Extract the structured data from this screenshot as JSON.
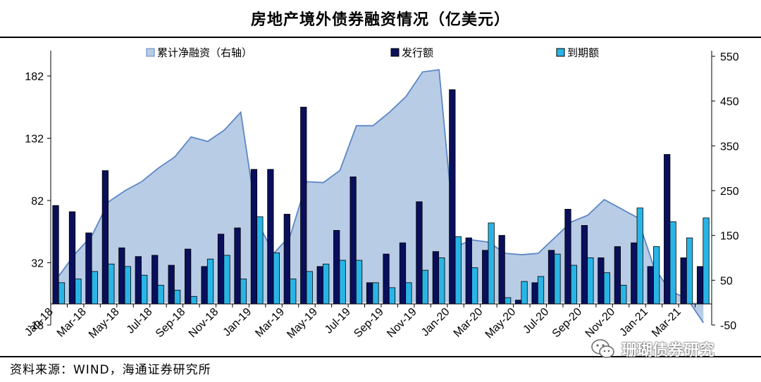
{
  "title": "房地产境外债券融资情况（亿美元）",
  "source": "资料来源：WIND，海通证券研究所",
  "watermark": "珊瑚债券研究",
  "colors": {
    "area_fill": "#b9cce6",
    "area_line": "#5b87c4",
    "issuance": "#0a0f5c",
    "maturity": "#29b4e6",
    "bar_stroke": "#000000"
  },
  "chart_data": {
    "type": "bar",
    "title": "房地产境外债券融资情况（亿美元）",
    "categories": [
      "Jan-18",
      "Feb-18",
      "Mar-18",
      "Apr-18",
      "May-18",
      "Jun-18",
      "Jul-18",
      "Aug-18",
      "Sep-18",
      "Oct-18",
      "Nov-18",
      "Dec-18",
      "Jan-19",
      "Feb-19",
      "Mar-19",
      "Apr-19",
      "May-19",
      "Jun-19",
      "Jul-19",
      "Aug-19",
      "Sep-19",
      "Oct-19",
      "Nov-19",
      "Dec-19",
      "Jan-20",
      "Feb-20",
      "Mar-20",
      "Apr-20",
      "May-20",
      "Jun-20",
      "Jul-20",
      "Aug-20",
      "Sep-20",
      "Oct-20",
      "Nov-20",
      "Dec-20",
      "Jan-21",
      "Feb-21",
      "Mar-21",
      "Apr-21"
    ],
    "x_tick_labels": [
      "Jan-18",
      "Mar-18",
      "May-18",
      "Jul-18",
      "Sep-18",
      "Nov-18",
      "Jan-19",
      "Mar-19",
      "May-19",
      "Jul-19",
      "Sep-19",
      "Nov-19",
      "Jan-20",
      "Mar-20",
      "May-20",
      "Jul-20",
      "Sep-20",
      "Nov-20",
      "Jan-21",
      "Mar-21"
    ],
    "series": [
      {
        "name": "累计净融资（右轴）",
        "type": "area",
        "axis": "right",
        "values": [
          60,
          110,
          150,
          225,
          250,
          270,
          300,
          325,
          370,
          360,
          385,
          425,
          180,
          110,
          150,
          270,
          268,
          295,
          395,
          395,
          425,
          460,
          515,
          520,
          125,
          140,
          135,
          110,
          107,
          110,
          145,
          180,
          195,
          230,
          210,
          190,
          80,
          25,
          10,
          -45
        ]
      },
      {
        "name": "发行额",
        "type": "bar",
        "axis": "left",
        "values": [
          78,
          73,
          56,
          106,
          44,
          37,
          38,
          30,
          43,
          29,
          55,
          60,
          107,
          107,
          71,
          157,
          29,
          58,
          101,
          16,
          39,
          48,
          81,
          41,
          171,
          52,
          42,
          54,
          2,
          16,
          42,
          75,
          62,
          36,
          45,
          48,
          29,
          119,
          36,
          29
        ]
      },
      {
        "name": "到期额",
        "type": "bar",
        "axis": "left",
        "values": [
          16,
          19,
          25,
          31,
          29,
          22,
          14,
          10,
          5,
          35,
          38,
          19,
          69,
          40,
          19,
          25,
          31,
          34,
          34,
          16,
          12,
          16,
          26,
          36,
          53,
          28,
          64,
          4,
          17,
          21,
          39,
          30,
          36,
          24,
          14,
          76,
          45,
          65,
          52,
          68
        ]
      }
    ],
    "ylim_left": [
      -18,
      200
    ],
    "yticks_left": [
      "-18",
      "32",
      "82",
      "132",
      "182"
    ],
    "ylim_right": [
      -50,
      550
    ],
    "yticks_right": [
      "-50",
      "50",
      "150",
      "250",
      "350",
      "450",
      "550"
    ],
    "legend": [
      "累计净融资（右轴）",
      "发行额",
      "到期额"
    ],
    "legend_position": "top"
  }
}
